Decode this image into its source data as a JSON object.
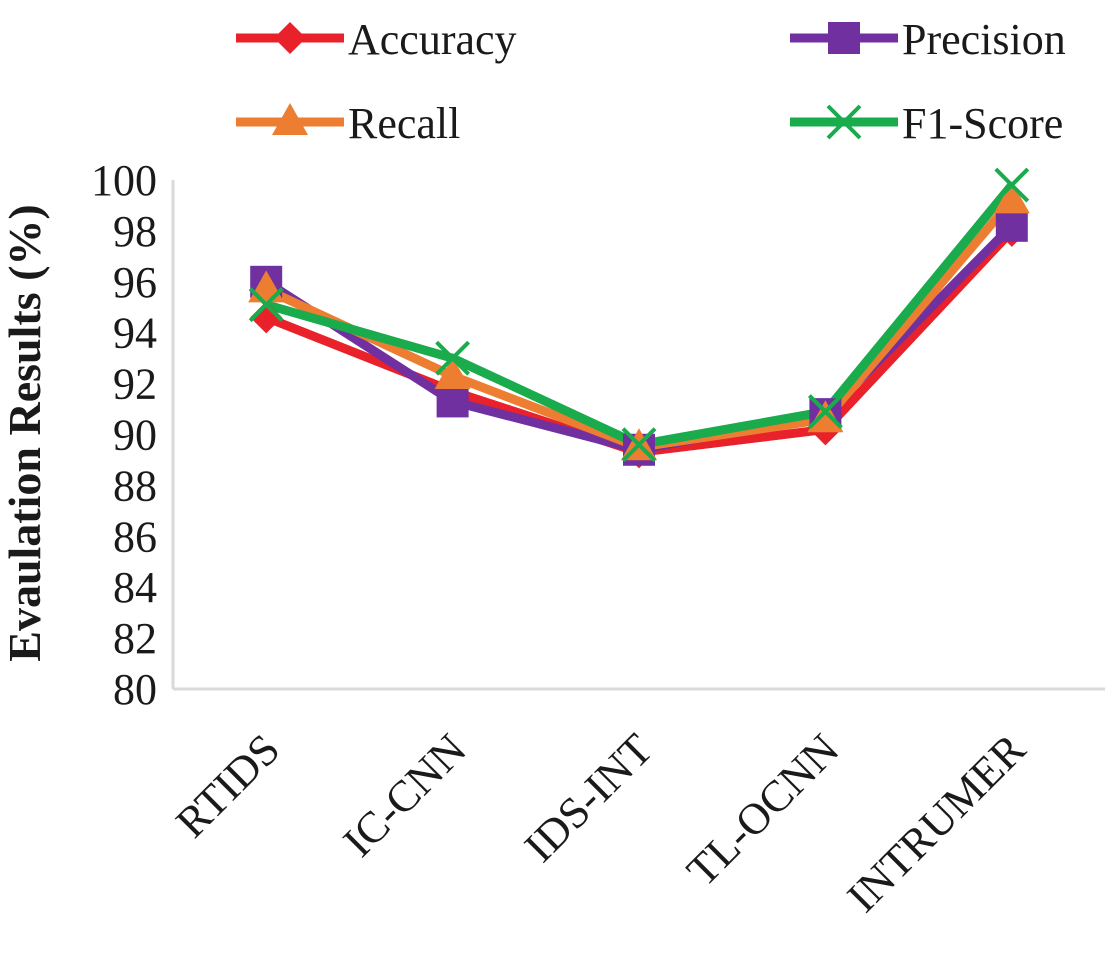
{
  "chart_data": {
    "type": "line",
    "title": "",
    "xlabel": "",
    "ylabel": "Evaulation Results (%)",
    "ylim": [
      80,
      100
    ],
    "yticks": [
      "80",
      "82",
      "84",
      "86",
      "88",
      "90",
      "92",
      "94",
      "96",
      "98",
      "100"
    ],
    "categories": [
      "RTIDS",
      "IC-CNN",
      "IDS-INT",
      "TL-OCNN",
      "INTRUMER"
    ],
    "grid": false,
    "legend_position": "top",
    "series": [
      {
        "name": "Accuracy",
        "color": "#e8212b",
        "marker": "diamond",
        "values": [
          94.6,
          91.7,
          89.3,
          90.2,
          98.0
        ]
      },
      {
        "name": "Precision",
        "color": "#7030a0",
        "marker": "square",
        "values": [
          96.0,
          91.3,
          89.4,
          90.8,
          98.2
        ]
      },
      {
        "name": "Recall",
        "color": "#ed7d31",
        "marker": "triangle",
        "values": [
          95.7,
          92.3,
          89.5,
          90.6,
          99.2
        ]
      },
      {
        "name": "F1-Score",
        "color": "#1aab4c",
        "marker": "x",
        "values": [
          95.1,
          93.0,
          89.6,
          90.9,
          99.8
        ]
      }
    ]
  }
}
